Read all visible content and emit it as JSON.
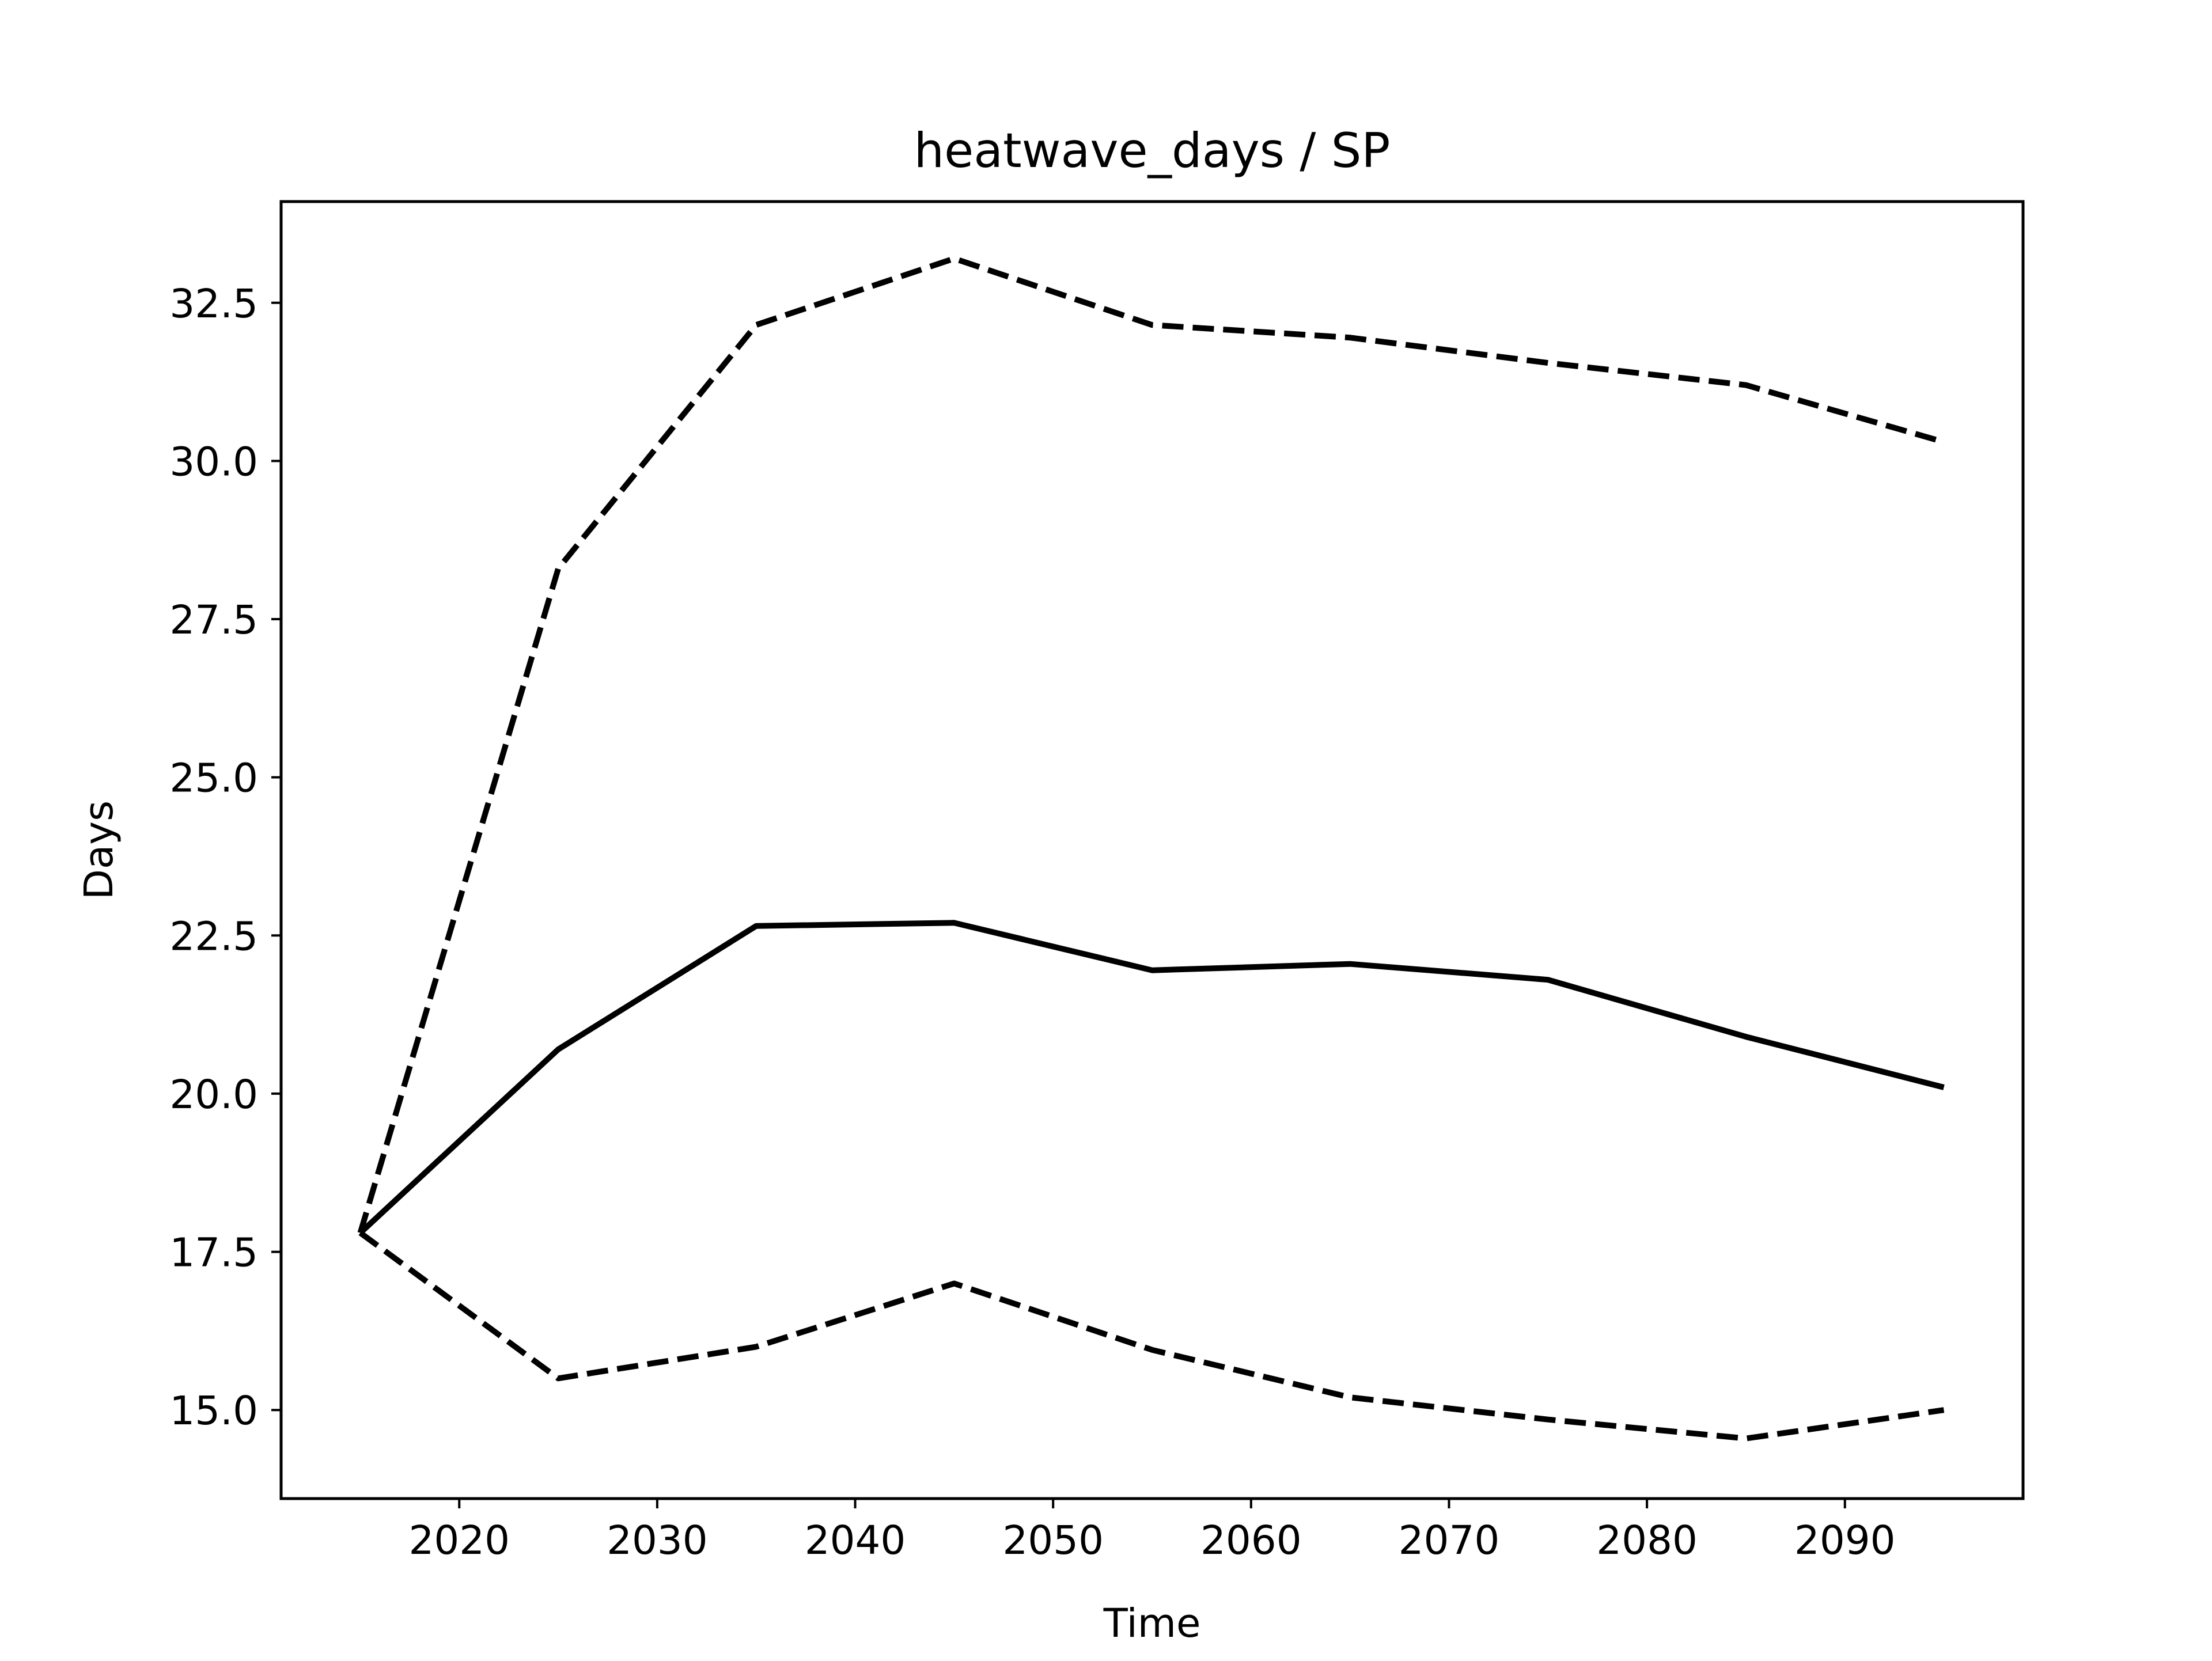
{
  "chart_data": {
    "type": "line",
    "title": "heatwave_days / SP",
    "xlabel": "Time",
    "ylabel": "Days",
    "x": [
      2015,
      2025,
      2035,
      2045,
      2055,
      2065,
      2075,
      2085,
      2095
    ],
    "xlim": [
      2011,
      2099
    ],
    "ylim": [
      13.6,
      34.1
    ],
    "xticks": [
      2020,
      2030,
      2040,
      2050,
      2060,
      2070,
      2080,
      2090
    ],
    "yticks": [
      15.0,
      17.5,
      20.0,
      22.5,
      25.0,
      27.5,
      30.0,
      32.5
    ],
    "ytick_labels": [
      "15.0",
      "17.5",
      "20.0",
      "22.5",
      "25.0",
      "27.5",
      "30.0",
      "32.5"
    ],
    "grid": false,
    "series": [
      {
        "style": "dashed",
        "color": "#000000",
        "values": [
          17.8,
          28.3,
          32.15,
          33.2,
          32.15,
          31.95,
          31.55,
          31.2,
          30.3
        ]
      },
      {
        "style": "solid",
        "color": "#000000",
        "values": [
          17.8,
          20.7,
          22.65,
          22.7,
          21.95,
          22.05,
          21.8,
          20.9,
          20.1
        ]
      },
      {
        "style": "dashed",
        "color": "#000000",
        "values": [
          17.8,
          15.5,
          16.0,
          17.0,
          15.95,
          15.2,
          14.85,
          14.55,
          15.0
        ]
      }
    ]
  }
}
